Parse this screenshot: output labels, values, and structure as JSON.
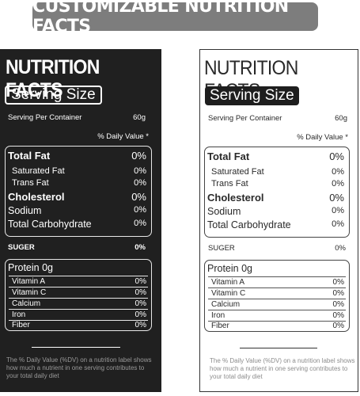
{
  "banner": {
    "title": "CUSTOMIZABLE NUTRITION FACTS"
  },
  "labels": [
    {
      "title": "NUTRITION FACTS",
      "serving_size": "Serving Size",
      "serving_per_container": "Serving Per Container",
      "serving_value": "60g",
      "daily_value_header": "% Daily Value  *",
      "rows": [
        {
          "name": "Total  Fat",
          "value": "0%"
        },
        {
          "name": "Saturated Fat",
          "value": "0%"
        },
        {
          "name": "Trans Fat",
          "value": "0%"
        },
        {
          "name": "Cholesterol",
          "value": "0%"
        },
        {
          "name": "Sodium",
          "value": "0%"
        },
        {
          "name": "Total Carbohydrate",
          "value": "0%"
        }
      ],
      "suger": {
        "name": "SUGER",
        "value": "0%"
      },
      "protein": "Protein 0g",
      "vitamins": [
        {
          "name": "Vitamin A",
          "value": "0%"
        },
        {
          "name": "Vitamin C",
          "value": "0%"
        },
        {
          "name": "Calcium",
          "value": "0%"
        },
        {
          "name": "Iron",
          "value": "0%"
        },
        {
          "name": "Fiber",
          "value": "0%"
        }
      ],
      "footnote": "The % Daily Value (%DV) on a nutrition label shows how much a nutrient in one serving contributes to your total daily diet"
    },
    {
      "title": "NUTRITION FACTS",
      "serving_size": "Serving Size",
      "serving_per_container": "Serving Per Container",
      "serving_value": "60g",
      "daily_value_header": "% Daily Value  *",
      "rows": [
        {
          "name": "Total  Fat",
          "value": "0%"
        },
        {
          "name": "Saturated Fat",
          "value": "0%"
        },
        {
          "name": "Trans Fat",
          "value": "0%"
        },
        {
          "name": "Cholesterol",
          "value": "0%"
        },
        {
          "name": "Sodium",
          "value": "0%"
        },
        {
          "name": "Total Carbohydrate",
          "value": "0%"
        }
      ],
      "suger": {
        "name": "SUGER",
        "value": "0%"
      },
      "protein": "Protein 0g",
      "vitamins": [
        {
          "name": "Vitamin A",
          "value": "0%"
        },
        {
          "name": "Vitamin C",
          "value": "0%"
        },
        {
          "name": "Calcium",
          "value": "0%"
        },
        {
          "name": "Iron",
          "value": "0%"
        },
        {
          "name": "Fiber",
          "value": "0%"
        }
      ],
      "footnote": "The % Daily Value (%DV) on a nutrition label shows how much a nutrient in one serving contributes to your total daily diet"
    }
  ],
  "colors": {
    "dark_panel": "#202020",
    "banner": "#7d7d7d",
    "light_panel": "#ffffff"
  }
}
